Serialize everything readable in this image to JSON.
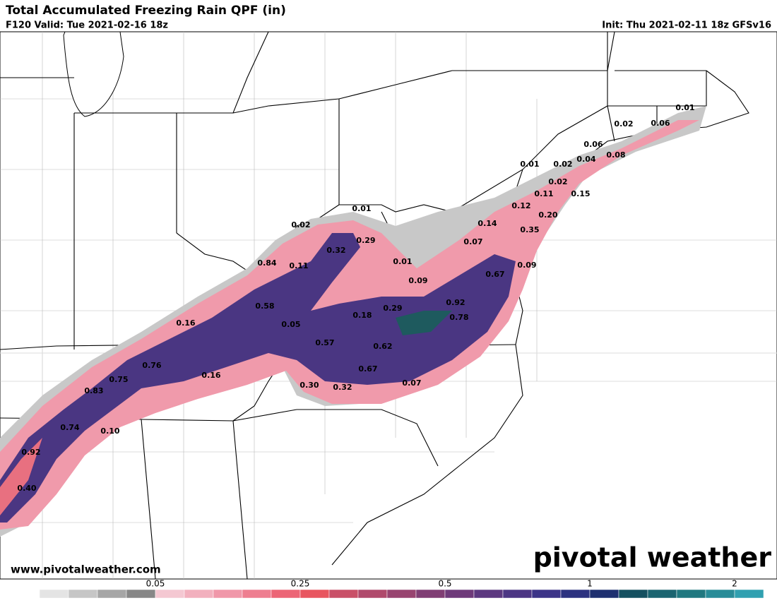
{
  "header": {
    "title": "Total Accumulated Freezing Rain QPF (in)",
    "valid": "F120 Valid: Tue 2021-02-16 18z",
    "init": "Init: Thu 2021-02-11 18z GFSv16"
  },
  "map": {
    "labels": [
      "0.01",
      "0.02",
      "0.06",
      "0.06",
      "0.08",
      "0.01",
      "0.02",
      "0.04",
      "0.02",
      "0.11",
      "0.15",
      "0.01",
      "0.02",
      "0.12",
      "0.20",
      "0.14",
      "0.35",
      "0.29",
      "0.07",
      "0.32",
      "0.84",
      "0.11",
      "0.01",
      "0.09",
      "0.67",
      "0.09",
      "0.58",
      "0.29",
      "0.92",
      "0.18",
      "0.78",
      "0.16",
      "0.05",
      "0.57",
      "0.62",
      "0.76",
      "0.16",
      "0.67",
      "0.75",
      "0.30",
      "0.32",
      "0.07",
      "0.83",
      "0.74",
      "0.10",
      "0.92",
      "0.40"
    ]
  },
  "footer": {
    "url": "www.pivotalweather.com",
    "logo": "pivotal weather"
  },
  "colorbar": {
    "colors": [
      "#ffffff",
      "#e4e4e4",
      "#c6c6c6",
      "#a6a6a6",
      "#878787",
      "#f4c8d2",
      "#f2b0be",
      "#f097a9",
      "#ee7e90",
      "#ec6576",
      "#e85660",
      "#c95068",
      "#b04a6c",
      "#984470",
      "#803e74",
      "#6e3a7a",
      "#5c3880",
      "#4c3684",
      "#3c3488",
      "#2c3280",
      "#1e3070",
      "#145060",
      "#1a6470",
      "#207880",
      "#288c98",
      "#30a0b0"
    ],
    "ticks": [
      "0.05",
      "0.25",
      "0.5",
      "1",
      "2"
    ]
  }
}
